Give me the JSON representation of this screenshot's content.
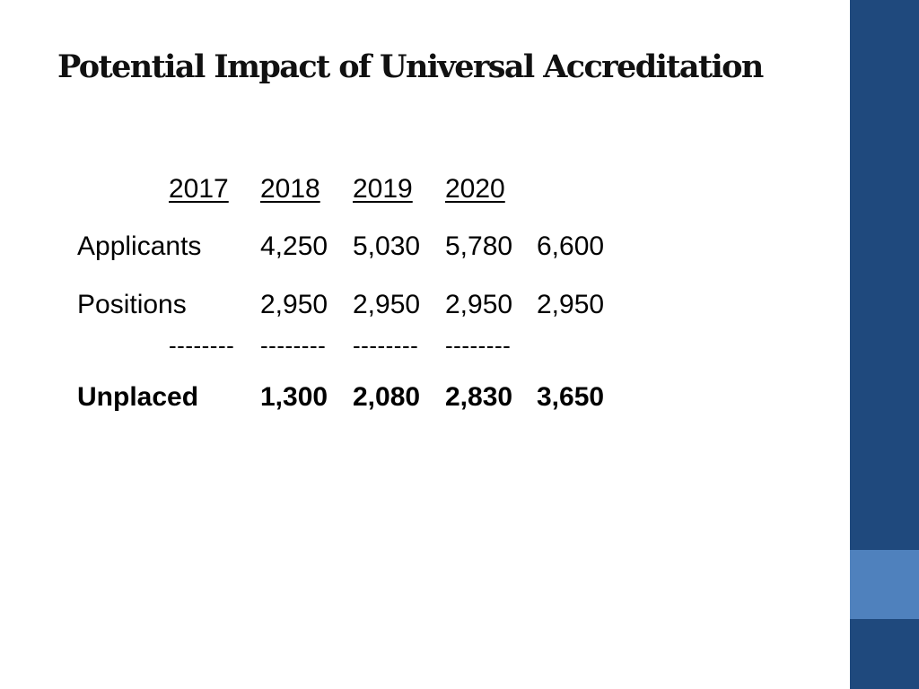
{
  "slide": {
    "title": "Potential Impact of Universal Accreditation",
    "colors": {
      "sidebar": "#1f497d",
      "sidebar_accent": "#4f81bd",
      "text": "#000000"
    },
    "table": {
      "years": [
        "2017",
        "2018",
        "2019",
        "2020"
      ],
      "applicants": {
        "label": "Applicants",
        "values": [
          "4,250",
          "5,030",
          "5,780",
          "6,600"
        ]
      },
      "positions": {
        "label": "Positions",
        "values": [
          "2,950",
          "2,950",
          "2,950",
          "2,950"
        ]
      },
      "separator": [
        "--------",
        "--------",
        "--------",
        "--------"
      ],
      "unplaced": {
        "label": "Unplaced",
        "values": [
          "1,300",
          "2,080",
          "2,830",
          "3,650"
        ]
      }
    }
  }
}
